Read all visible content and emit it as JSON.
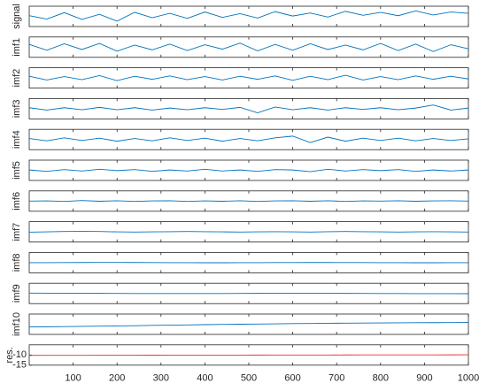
{
  "chart_data": [
    {
      "type": "line",
      "ylabel": "signal",
      "xlim": [
        0,
        1000
      ],
      "ylim": [
        -3,
        3
      ],
      "color": "#0072bd",
      "x": [
        0,
        40,
        80,
        120,
        160,
        200,
        240,
        280,
        320,
        360,
        400,
        440,
        480,
        520,
        560,
        600,
        640,
        680,
        720,
        760,
        800,
        840,
        880,
        920,
        960,
        1000
      ],
      "values": [
        0.2,
        -0.8,
        1.1,
        -0.9,
        0.6,
        -1.4,
        1.2,
        -0.4,
        0.9,
        -0.6,
        1.3,
        -0.3,
        0.8,
        -0.5,
        1.4,
        0.1,
        1.0,
        -0.2,
        1.5,
        0.3,
        1.2,
        0.2,
        1.6,
        0.4,
        1.3,
        0.9
      ]
    },
    {
      "type": "line",
      "ylabel": "imf1",
      "xlim": [
        0,
        1000
      ],
      "ylim": [
        -3,
        3
      ],
      "color": "#0072bd",
      "x": [
        0,
        40,
        80,
        120,
        160,
        200,
        240,
        280,
        320,
        360,
        400,
        440,
        480,
        520,
        560,
        600,
        640,
        680,
        720,
        760,
        800,
        840,
        880,
        920,
        960,
        1000
      ],
      "values": [
        0.8,
        -0.9,
        1.0,
        -0.7,
        1.1,
        -1.2,
        0.6,
        -0.8,
        0.9,
        -1.0,
        0.7,
        -0.6,
        1.2,
        -1.1,
        0.8,
        -0.9,
        1.0,
        -0.7,
        0.6,
        -0.8,
        1.1,
        -1.0,
        0.9,
        -1.3,
        0.7,
        -0.5
      ]
    },
    {
      "type": "line",
      "ylabel": "imf2",
      "xlim": [
        0,
        1000
      ],
      "ylim": [
        -3,
        3
      ],
      "color": "#0072bd",
      "x": [
        0,
        40,
        80,
        120,
        160,
        200,
        240,
        280,
        320,
        360,
        400,
        440,
        480,
        520,
        560,
        600,
        640,
        680,
        720,
        760,
        800,
        840,
        880,
        920,
        960,
        1000
      ],
      "values": [
        0.5,
        -0.6,
        0.4,
        -0.5,
        0.7,
        -0.8,
        0.5,
        -0.4,
        0.6,
        -0.5,
        0.4,
        -0.6,
        0.5,
        -0.4,
        0.6,
        -0.7,
        0.5,
        -0.5,
        0.8,
        -0.6,
        0.4,
        -0.5,
        0.6,
        -0.4,
        0.5,
        -0.3
      ]
    },
    {
      "type": "line",
      "ylabel": "imf3",
      "xlim": [
        0,
        1000
      ],
      "ylim": [
        -3,
        3
      ],
      "color": "#0072bd",
      "x": [
        0,
        40,
        80,
        120,
        160,
        200,
        240,
        280,
        320,
        360,
        400,
        440,
        480,
        520,
        560,
        600,
        640,
        680,
        720,
        760,
        800,
        840,
        880,
        920,
        960,
        1000
      ],
      "values": [
        0.3,
        -0.4,
        0.3,
        -0.3,
        0.4,
        -0.3,
        0.3,
        -0.4,
        0.2,
        -0.3,
        0.3,
        -0.2,
        0.4,
        -1.2,
        0.5,
        -0.3,
        0.3,
        -0.4,
        0.3,
        -0.2,
        0.3,
        -0.3,
        0.2,
        1.1,
        -0.4,
        0.2
      ]
    },
    {
      "type": "line",
      "ylabel": "imf4",
      "xlim": [
        0,
        1000
      ],
      "ylim": [
        -3,
        3
      ],
      "color": "#0072bd",
      "x": [
        0,
        40,
        80,
        120,
        160,
        200,
        240,
        280,
        320,
        360,
        400,
        440,
        480,
        520,
        560,
        600,
        640,
        680,
        720,
        760,
        800,
        840,
        880,
        920,
        960,
        1000
      ],
      "values": [
        0.3,
        -0.4,
        0.5,
        -0.3,
        0.4,
        -0.5,
        0.3,
        -0.4,
        0.5,
        -0.3,
        0.4,
        -0.5,
        0.3,
        -0.4,
        0.5,
        1.0,
        -0.9,
        0.7,
        -0.5,
        0.4,
        -0.3,
        0.4,
        -0.4,
        0.3,
        -0.3,
        0.2
      ]
    },
    {
      "type": "line",
      "ylabel": "imf5",
      "xlim": [
        0,
        1000
      ],
      "ylim": [
        -3,
        3
      ],
      "color": "#0072bd",
      "x": [
        0,
        40,
        80,
        120,
        160,
        200,
        240,
        280,
        320,
        360,
        400,
        440,
        480,
        520,
        560,
        600,
        640,
        680,
        720,
        760,
        800,
        840,
        880,
        920,
        960,
        1000
      ],
      "values": [
        0.1,
        -0.3,
        0.2,
        -0.2,
        0.3,
        -0.1,
        0.2,
        -0.3,
        0.1,
        -0.2,
        0.3,
        -0.2,
        0.1,
        -0.3,
        0.2,
        0.1,
        -0.4,
        0.3,
        -0.2,
        0.2,
        -0.1,
        0.2,
        -0.3,
        0.1,
        -0.2,
        0.1
      ]
    },
    {
      "type": "line",
      "ylabel": "imf6",
      "xlim": [
        0,
        1000
      ],
      "ylim": [
        -3,
        3
      ],
      "color": "#0072bd",
      "x": [
        0,
        40,
        80,
        120,
        160,
        200,
        240,
        280,
        320,
        360,
        400,
        440,
        480,
        520,
        560,
        600,
        640,
        680,
        720,
        760,
        800,
        840,
        880,
        920,
        960,
        1000
      ],
      "values": [
        0.0,
        0.05,
        -0.1,
        0.15,
        -0.05,
        0.1,
        -0.1,
        0.05,
        0.1,
        -0.1,
        0.05,
        -0.05,
        0.1,
        -0.1,
        0.05,
        0.1,
        -0.05,
        0.1,
        -0.1,
        0.05,
        0.0,
        0.1,
        -0.05,
        0.05,
        0.1,
        0.0
      ]
    },
    {
      "type": "line",
      "ylabel": "imf7",
      "xlim": [
        0,
        1000
      ],
      "ylim": [
        -3,
        3
      ],
      "color": "#0072bd",
      "x": [
        0,
        40,
        80,
        120,
        160,
        200,
        240,
        280,
        320,
        360,
        400,
        440,
        480,
        520,
        560,
        600,
        640,
        680,
        720,
        760,
        800,
        840,
        880,
        920,
        960,
        1000
      ],
      "values": [
        -0.1,
        0.0,
        0.1,
        0.15,
        0.1,
        0.0,
        -0.05,
        0.0,
        0.05,
        0.1,
        0.05,
        0.0,
        -0.05,
        0.0,
        0.05,
        0.0,
        -0.05,
        0.05,
        0.1,
        0.05,
        0.0,
        -0.05,
        0.0,
        0.05,
        0.0,
        -0.05
      ]
    },
    {
      "type": "line",
      "ylabel": "imf8",
      "xlim": [
        0,
        1000
      ],
      "ylim": [
        -3,
        3
      ],
      "color": "#0072bd",
      "x": [
        0,
        40,
        80,
        120,
        160,
        200,
        240,
        280,
        320,
        360,
        400,
        440,
        480,
        520,
        560,
        600,
        640,
        680,
        720,
        760,
        800,
        840,
        880,
        920,
        960,
        1000
      ],
      "values": [
        0.0,
        0.0,
        0.02,
        0.04,
        0.05,
        0.05,
        0.04,
        0.02,
        0.0,
        -0.02,
        -0.03,
        -0.03,
        -0.02,
        0.0,
        0.02,
        0.03,
        0.04,
        0.04,
        0.03,
        0.02,
        0.0,
        -0.02,
        -0.03,
        -0.03,
        -0.02,
        0.0
      ]
    },
    {
      "type": "line",
      "ylabel": "imf9",
      "xlim": [
        0,
        1000
      ],
      "ylim": [
        -3,
        3
      ],
      "color": "#0072bd",
      "x": [
        0,
        40,
        80,
        120,
        160,
        200,
        240,
        280,
        320,
        360,
        400,
        440,
        480,
        520,
        560,
        600,
        640,
        680,
        720,
        760,
        800,
        840,
        880,
        920,
        960,
        1000
      ],
      "values": [
        0.1,
        0.08,
        0.06,
        0.04,
        0.02,
        0.0,
        -0.02,
        -0.03,
        -0.04,
        -0.04,
        -0.03,
        -0.02,
        0.0,
        0.02,
        0.03,
        0.04,
        0.04,
        0.03,
        0.02,
        0.0,
        -0.02,
        -0.04,
        -0.05,
        -0.06,
        -0.07,
        -0.08
      ]
    },
    {
      "type": "line",
      "ylabel": "imf10",
      "xlim": [
        0,
        1000
      ],
      "ylim": [
        -3,
        3
      ],
      "color": "#0072bd",
      "x": [
        0,
        40,
        80,
        120,
        160,
        200,
        240,
        280,
        320,
        360,
        400,
        440,
        480,
        520,
        560,
        600,
        640,
        680,
        720,
        760,
        800,
        840,
        880,
        920,
        960,
        1000
      ],
      "values": [
        -0.8,
        -0.75,
        -0.7,
        -0.64,
        -0.58,
        -0.5,
        -0.43,
        -0.35,
        -0.28,
        -0.2,
        -0.13,
        -0.06,
        0.0,
        0.06,
        0.12,
        0.17,
        0.22,
        0.27,
        0.31,
        0.35,
        0.38,
        0.41,
        0.44,
        0.46,
        0.48,
        0.5
      ]
    },
    {
      "type": "line",
      "ylabel": "res.",
      "xlim": [
        0,
        1000
      ],
      "ylim": [
        -15,
        -5
      ],
      "color": "#e8312f",
      "xticks": [
        100,
        200,
        300,
        400,
        500,
        600,
        700,
        800,
        900,
        1000
      ],
      "yticks": [
        -15,
        -10
      ],
      "x": [
        0,
        40,
        80,
        120,
        160,
        200,
        240,
        280,
        320,
        360,
        400,
        440,
        480,
        520,
        560,
        600,
        640,
        680,
        720,
        760,
        800,
        840,
        880,
        920,
        960,
        1000
      ],
      "values": [
        -10.2,
        -10.18,
        -10.16,
        -10.15,
        -10.13,
        -10.12,
        -10.1,
        -10.09,
        -10.08,
        -10.07,
        -10.06,
        -10.05,
        -10.04,
        -10.03,
        -10.02,
        -10.01,
        -10.0,
        -9.99,
        -9.98,
        -9.97,
        -9.96,
        -9.95,
        -9.94,
        -9.93,
        -9.92,
        -9.91
      ]
    }
  ]
}
